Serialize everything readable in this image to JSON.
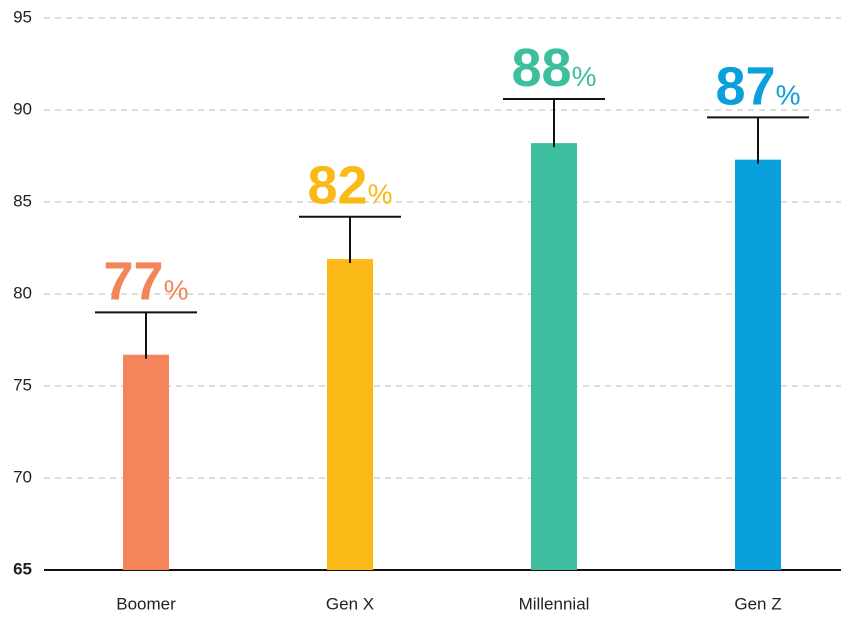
{
  "chart_data": {
    "type": "bar",
    "categories": [
      "Boomer",
      "Gen X",
      "Millennial",
      "Gen Z"
    ],
    "values": [
      76.7,
      81.9,
      88.2,
      87.3
    ],
    "value_labels": [
      "77%",
      "82%",
      "88%",
      "87%"
    ],
    "errors": [
      2.3,
      2.3,
      2.4,
      2.3
    ],
    "colors": [
      "#f4845a",
      "#fbb917",
      "#3dbf9f",
      "#0aa0dc"
    ],
    "ylim": [
      65,
      95
    ],
    "yticks": [
      65,
      70,
      75,
      80,
      85,
      90,
      95
    ],
    "grid": true
  }
}
